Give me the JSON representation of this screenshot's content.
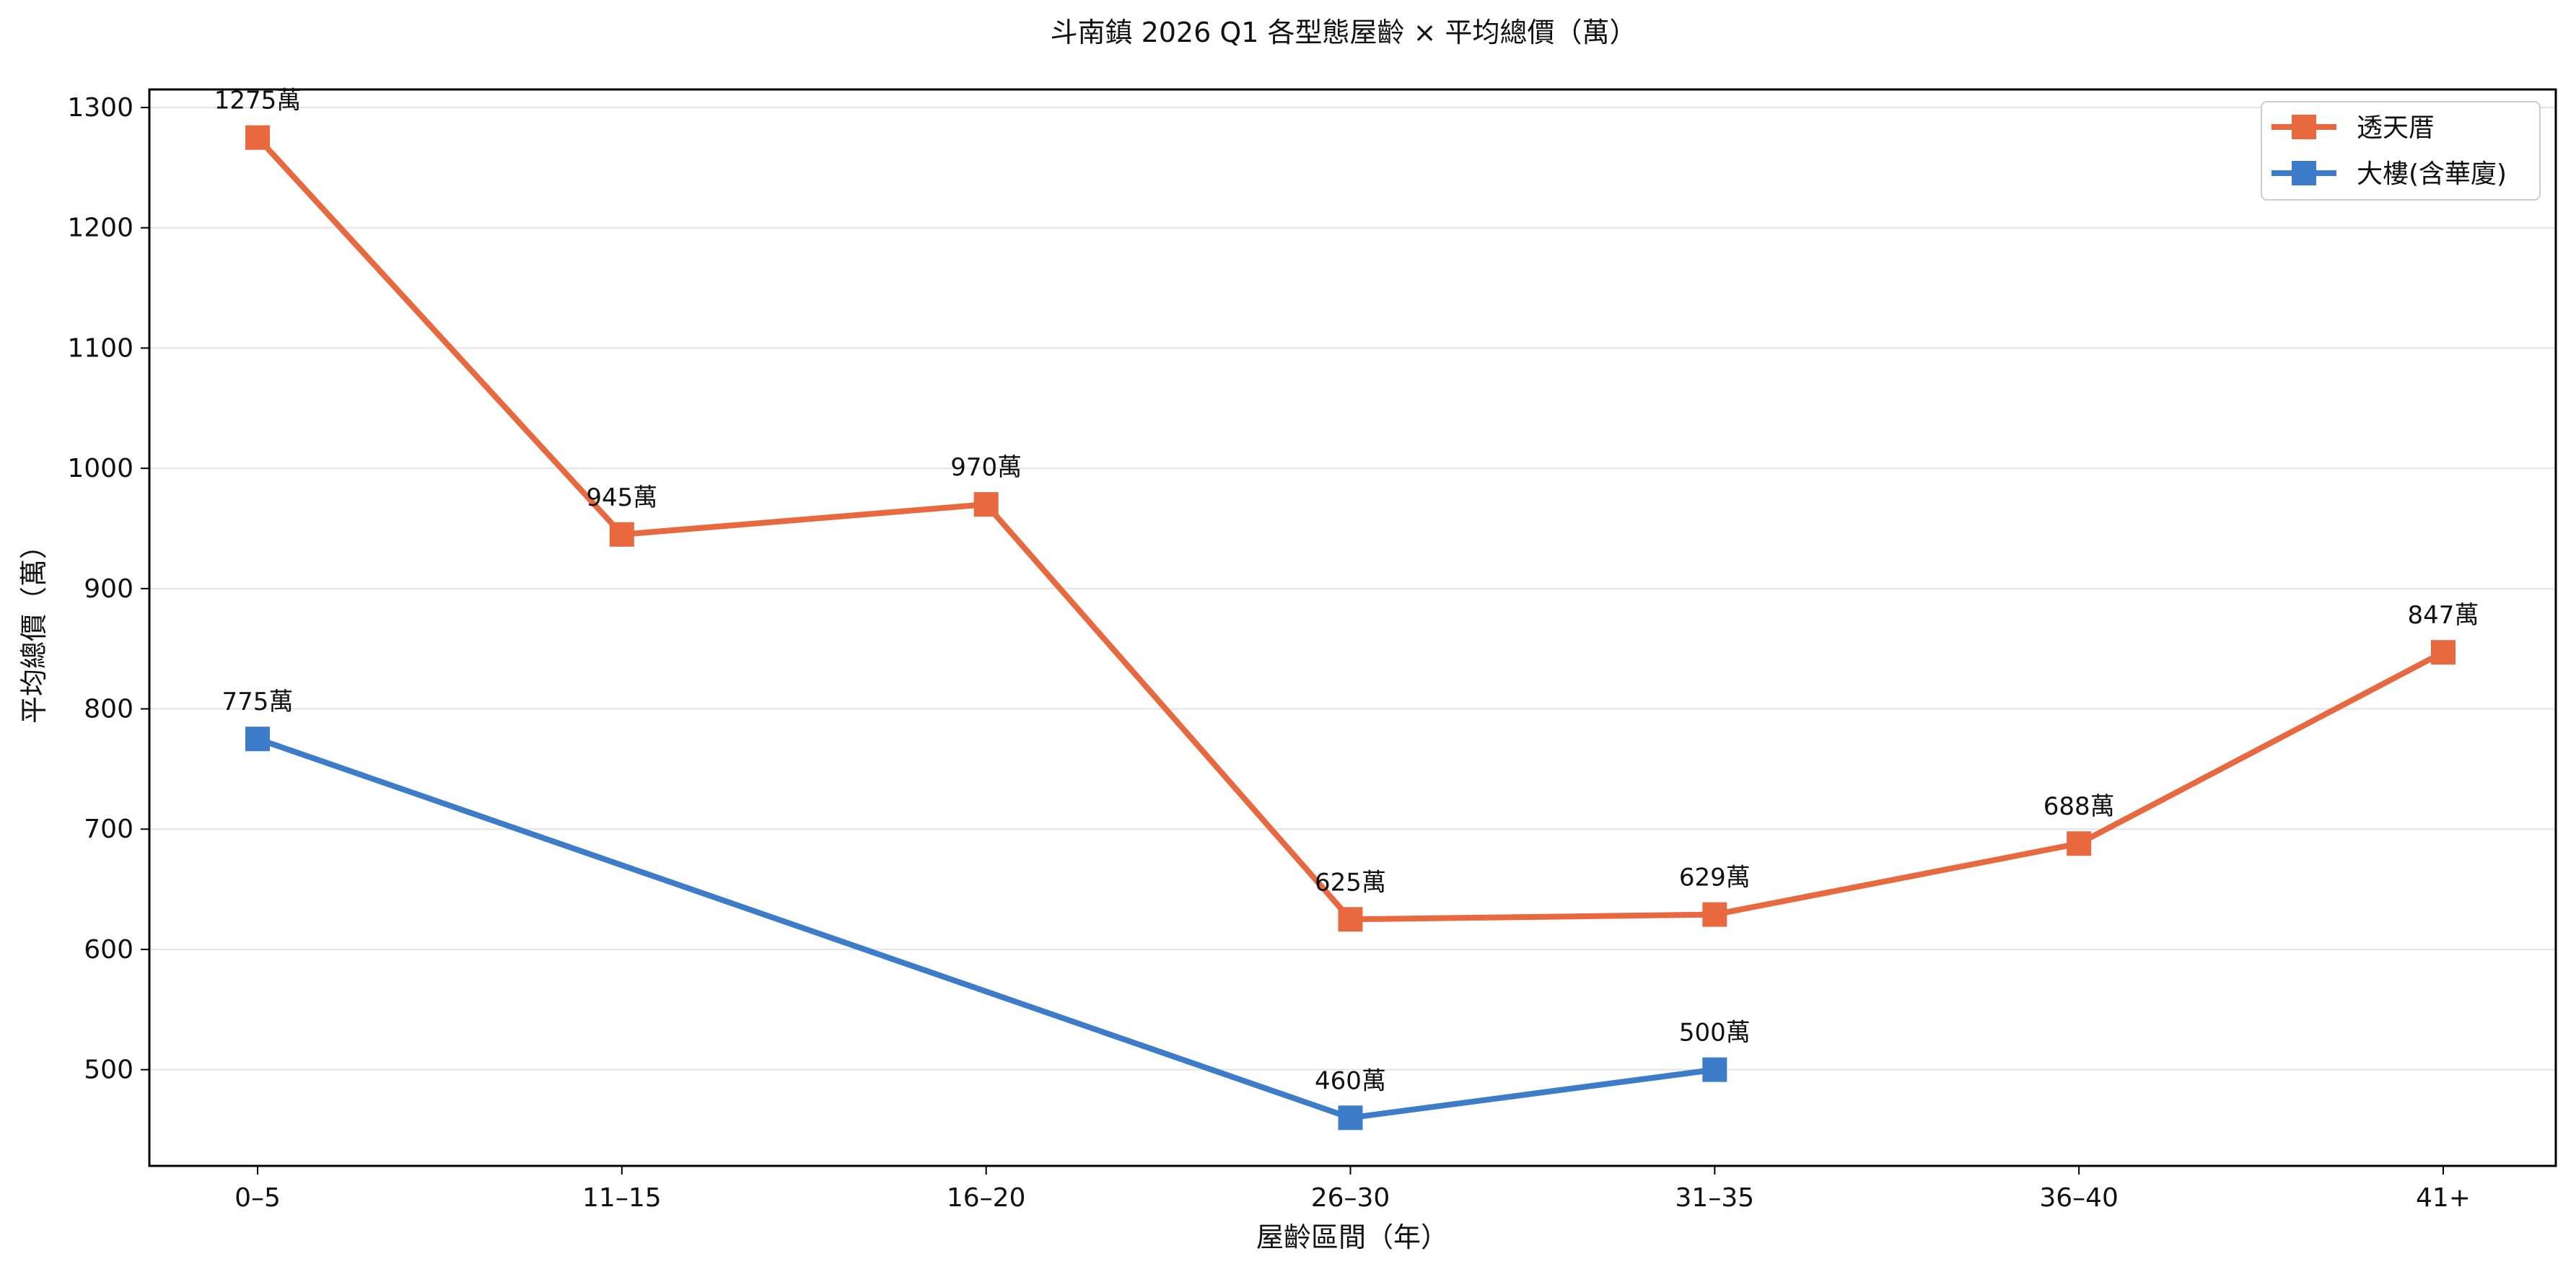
{
  "chart_data": {
    "type": "line",
    "title": "斗南鎮 2026 Q1 各型態屋齡 × 平均總價（萬）",
    "xlabel": "屋齡區間（年）",
    "ylabel": "平均總價（萬）",
    "categories": [
      "0–5",
      "11–15",
      "16–20",
      "26–30",
      "31–35",
      "36–40",
      "41+"
    ],
    "ylim": [
      420,
      1315
    ],
    "yticks": [
      500,
      600,
      700,
      800,
      900,
      1000,
      1100,
      1200,
      1300
    ],
    "grid": "horizontal",
    "legend_position": "top-right",
    "label_suffix": "萬",
    "series": [
      {
        "name": "透天厝",
        "color": "#E8683F",
        "marker": "square",
        "values": [
          1275,
          945,
          970,
          625,
          629,
          688,
          847
        ]
      },
      {
        "name": "大樓(含華廈)",
        "color": "#3D7CC9",
        "marker": "square",
        "values": [
          775,
          null,
          null,
          460,
          500,
          null,
          null
        ]
      }
    ]
  }
}
